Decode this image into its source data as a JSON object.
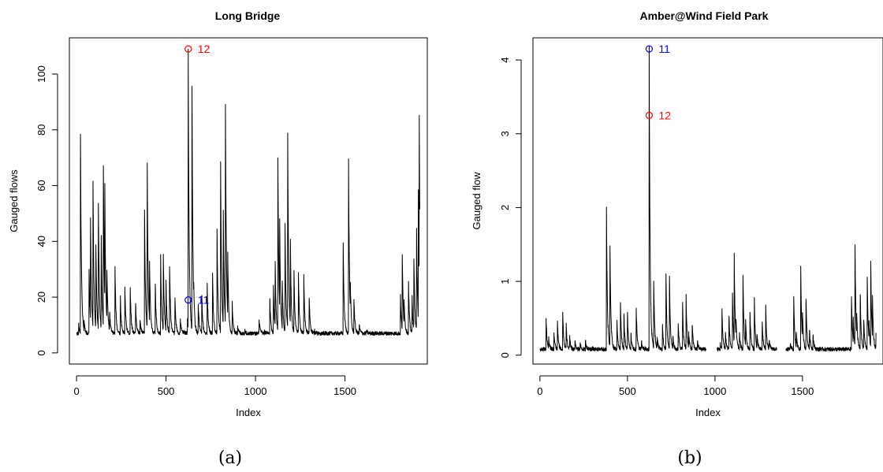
{
  "chart_data": [
    {
      "type": "line",
      "title": "Long Bridge",
      "xlabel": "Index",
      "ylabel": "Gauged flows",
      "caption": "(a)",
      "xlim": [
        -40,
        1960
      ],
      "ylim": [
        -4,
        113
      ],
      "xticks": [
        0,
        500,
        1000,
        1500
      ],
      "yticks": [
        0,
        20,
        40,
        60,
        80,
        100
      ],
      "grid": false,
      "line_color": "#000000",
      "baseline": 7,
      "spikes": [
        [
          8,
          7
        ],
        [
          12,
          10
        ],
        [
          22,
          79
        ],
        [
          28,
          22
        ],
        [
          42,
          12
        ],
        [
          70,
          30
        ],
        [
          78,
          50
        ],
        [
          92,
          62
        ],
        [
          108,
          40
        ],
        [
          122,
          55
        ],
        [
          138,
          42
        ],
        [
          150,
          69
        ],
        [
          158,
          59
        ],
        [
          170,
          30
        ],
        [
          185,
          15
        ],
        [
          215,
          30
        ],
        [
          245,
          20
        ],
        [
          270,
          24
        ],
        [
          300,
          24
        ],
        [
          330,
          18
        ],
        [
          355,
          12
        ],
        [
          380,
          51
        ],
        [
          395,
          69
        ],
        [
          408,
          33
        ],
        [
          440,
          25
        ],
        [
          470,
          35
        ],
        [
          485,
          36
        ],
        [
          500,
          25
        ],
        [
          520,
          32
        ],
        [
          550,
          20
        ],
        [
          580,
          12
        ],
        [
          600,
          8
        ],
        [
          620,
          12
        ],
        [
          624,
          109
        ],
        [
          628,
          15
        ],
        [
          645,
          98
        ],
        [
          655,
          25
        ],
        [
          680,
          18
        ],
        [
          700,
          20
        ],
        [
          730,
          24
        ],
        [
          760,
          28
        ],
        [
          785,
          46
        ],
        [
          805,
          69
        ],
        [
          820,
          52
        ],
        [
          832,
          91
        ],
        [
          845,
          35
        ],
        [
          870,
          18
        ],
        [
          900,
          10
        ],
        [
          940,
          8
        ],
        [
          980,
          6
        ],
        [
          1020,
          12
        ],
        [
          1050,
          8
        ],
        [
          1080,
          20
        ],
        [
          1100,
          24
        ],
        [
          1110,
          33
        ],
        [
          1125,
          71
        ],
        [
          1135,
          49
        ],
        [
          1150,
          25
        ],
        [
          1165,
          45
        ],
        [
          1180,
          78
        ],
        [
          1195,
          40
        ],
        [
          1215,
          29
        ],
        [
          1240,
          28
        ],
        [
          1270,
          27
        ],
        [
          1300,
          20
        ],
        [
          1330,
          8
        ],
        [
          1360,
          6
        ],
        [
          1400,
          5
        ],
        [
          1450,
          4
        ],
        [
          1490,
          40
        ],
        [
          1500,
          12
        ],
        [
          1520,
          68
        ],
        [
          1530,
          25
        ],
        [
          1550,
          20
        ],
        [
          1580,
          10
        ],
        [
          1620,
          8
        ],
        [
          1660,
          6
        ],
        [
          1700,
          5
        ],
        [
          1750,
          4
        ],
        [
          1790,
          4
        ],
        [
          1810,
          20
        ],
        [
          1820,
          36
        ],
        [
          1830,
          20
        ],
        [
          1855,
          25
        ],
        [
          1875,
          20
        ],
        [
          1885,
          35
        ],
        [
          1900,
          45
        ],
        [
          1910,
          60
        ],
        [
          1915,
          87
        ],
        [
          1918,
          45
        ]
      ],
      "gaps": [],
      "annotations": [
        {
          "label": "12",
          "x": 624,
          "y": 109,
          "color": "#ff0000"
        },
        {
          "label": "11",
          "x": 624,
          "y": 19,
          "color": "#0000ff"
        }
      ]
    },
    {
      "type": "line",
      "title": "Amber@Wind Field Park",
      "xlabel": "Index",
      "ylabel": "Gauged flow",
      "caption": "(b)",
      "xlim": [
        -40,
        1960
      ],
      "ylim": [
        -0.12,
        4.3
      ],
      "xticks": [
        0,
        500,
        1000,
        1500
      ],
      "yticks": [
        0,
        1,
        2,
        3,
        4
      ],
      "grid": false,
      "line_color": "#000000",
      "baseline": 0.08,
      "spikes": [
        [
          20,
          0.1
        ],
        [
          35,
          0.5
        ],
        [
          50,
          0.25
        ],
        [
          80,
          0.3
        ],
        [
          100,
          0.45
        ],
        [
          130,
          0.6
        ],
        [
          150,
          0.4
        ],
        [
          170,
          0.25
        ],
        [
          200,
          0.2
        ],
        [
          230,
          0.15
        ],
        [
          260,
          0.2
        ],
        [
          300,
          0.1
        ],
        [
          330,
          0.05
        ],
        [
          360,
          0.05
        ],
        [
          380,
          1.98
        ],
        [
          390,
          0.4
        ],
        [
          400,
          1.5
        ],
        [
          410,
          0.3
        ],
        [
          440,
          0.45
        ],
        [
          460,
          0.72
        ],
        [
          480,
          0.55
        ],
        [
          500,
          0.58
        ],
        [
          520,
          0.3
        ],
        [
          550,
          0.65
        ],
        [
          580,
          0.2
        ],
        [
          600,
          0.1
        ],
        [
          620,
          0.05
        ],
        [
          624,
          4.15
        ],
        [
          628,
          1.36
        ],
        [
          640,
          0.3
        ],
        [
          650,
          1.05
        ],
        [
          670,
          0.25
        ],
        [
          700,
          0.4
        ],
        [
          720,
          1.1
        ],
        [
          740,
          1.1
        ],
        [
          760,
          0.25
        ],
        [
          790,
          0.45
        ],
        [
          815,
          0.7
        ],
        [
          835,
          0.8
        ],
        [
          850,
          0.3
        ],
        [
          870,
          0.42
        ],
        [
          900,
          0.2
        ],
        [
          930,
          0.1
        ],
        [
          1030,
          0.15
        ],
        [
          1040,
          0.62
        ],
        [
          1060,
          0.3
        ],
        [
          1080,
          0.55
        ],
        [
          1100,
          0.8
        ],
        [
          1110,
          1.38
        ],
        [
          1120,
          0.5
        ],
        [
          1140,
          0.3
        ],
        [
          1160,
          1.09
        ],
        [
          1175,
          0.5
        ],
        [
          1200,
          0.6
        ],
        [
          1225,
          0.75
        ],
        [
          1240,
          0.3
        ],
        [
          1270,
          0.45
        ],
        [
          1290,
          0.65
        ],
        [
          1310,
          0.2
        ],
        [
          1330,
          0.1
        ],
        [
          1400,
          0.05
        ],
        [
          1430,
          0.15
        ],
        [
          1450,
          0.78
        ],
        [
          1465,
          0.3
        ],
        [
          1490,
          1.19
        ],
        [
          1500,
          0.6
        ],
        [
          1520,
          0.8
        ],
        [
          1540,
          0.35
        ],
        [
          1560,
          0.3
        ],
        [
          1600,
          0.1
        ],
        [
          1650,
          0.05
        ],
        [
          1700,
          0.03
        ],
        [
          1750,
          0.05
        ],
        [
          1780,
          0.8
        ],
        [
          1790,
          0.5
        ],
        [
          1800,
          1.5
        ],
        [
          1810,
          0.6
        ],
        [
          1830,
          0.85
        ],
        [
          1850,
          0.5
        ],
        [
          1870,
          1.1
        ],
        [
          1880,
          0.45
        ],
        [
          1890,
          1.28
        ],
        [
          1900,
          0.8
        ],
        [
          1920,
          0.3
        ]
      ],
      "gaps": [
        [
          950,
          1010
        ],
        [
          1355,
          1405
        ]
      ],
      "annotations": [
        {
          "label": "11",
          "x": 624,
          "y": 4.15,
          "color": "#0000ff"
        },
        {
          "label": "12",
          "x": 624,
          "y": 3.25,
          "color": "#ff0000"
        }
      ]
    }
  ]
}
